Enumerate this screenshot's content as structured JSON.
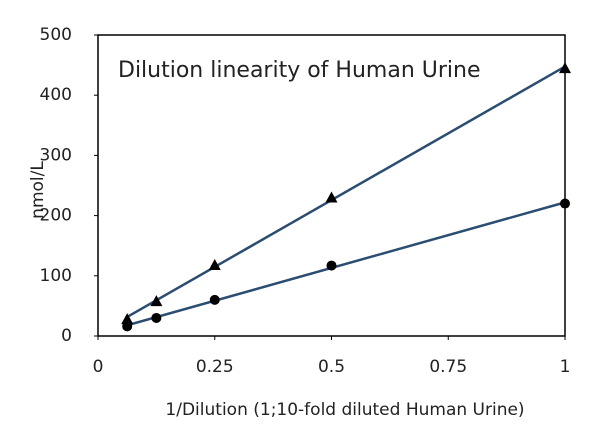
{
  "chart_data": {
    "type": "scatter",
    "title": "Dilution linearity of Human Urine",
    "x_label": "1/Dilution (1;10-fold diluted Human Urine)",
    "y_label": "nmol/L",
    "x": [
      0.0625,
      0.125,
      0.25,
      0.5,
      1
    ],
    "series": [
      {
        "color": "#000000",
        "marker": "triangle",
        "trendline_color": "#2b4d72",
        "values": [
          28,
          58,
          118,
          230,
          445
        ]
      },
      {
        "color": "#000000",
        "marker": "circle",
        "trendline_color": "#2b4d72",
        "values": [
          16,
          30,
          60,
          117,
          220
        ]
      }
    ],
    "trendline": "linear",
    "xlim": [
      0,
      1
    ],
    "xticks": [
      0,
      0.25,
      0.5,
      0.75,
      1
    ],
    "ylim": [
      0,
      500
    ],
    "yticks": [
      0,
      100,
      200,
      300,
      400,
      500
    ],
    "grid": false
  }
}
